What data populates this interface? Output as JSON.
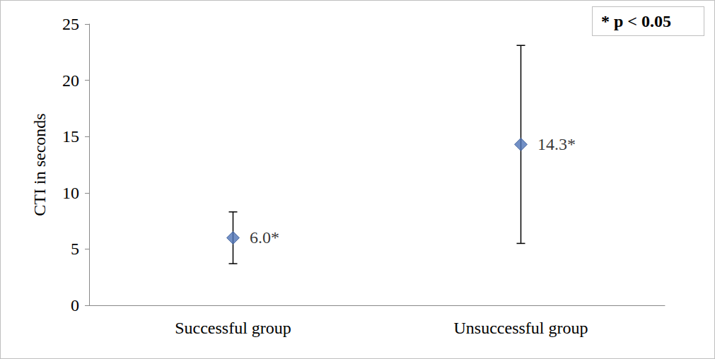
{
  "chart_data": {
    "type": "scatter",
    "y_label": "CTI in seconds",
    "annotation": "* p < 0.05",
    "categories": [
      "Successful group",
      "Unsuccessful group"
    ],
    "values": [
      6.0,
      14.3
    ],
    "value_labels": [
      "6.0*",
      "14.3*"
    ],
    "error": [
      2.3,
      8.8
    ],
    "color": "#4f74b8",
    "marker": "diamond",
    "data_labels": true,
    "ylim": [
      0,
      25
    ],
    "yticks": [
      0,
      5,
      10,
      15,
      20,
      25
    ],
    "grid": false
  }
}
